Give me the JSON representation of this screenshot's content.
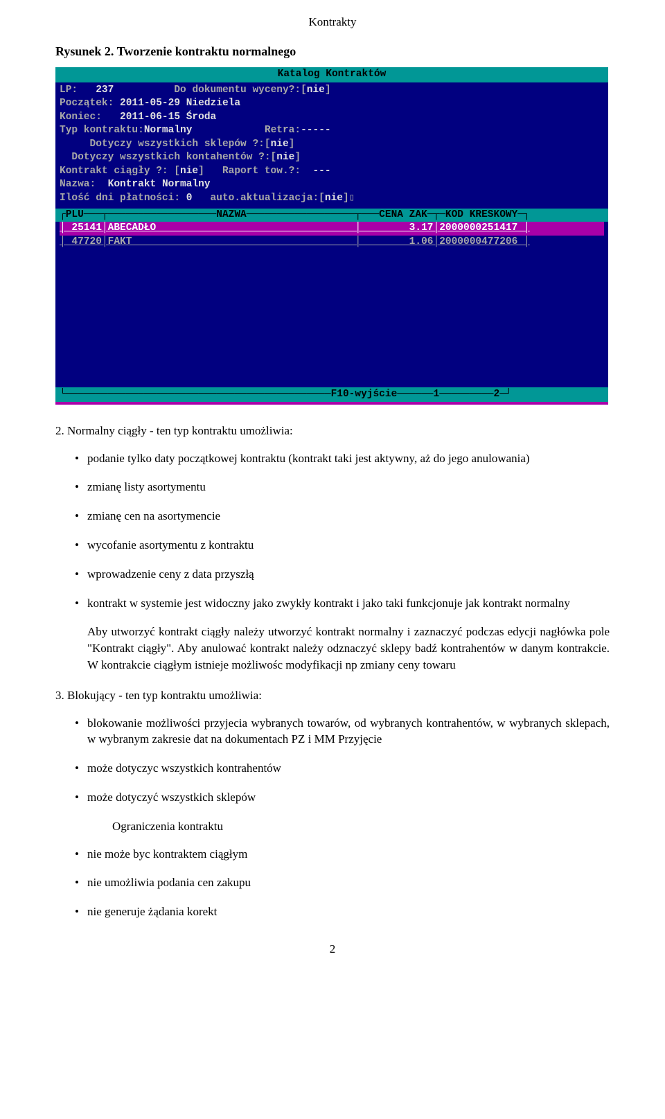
{
  "doc": {
    "header": "Kontrakty",
    "figure_caption": "Rysunek 2. Tworzenie kontraktu normalnego",
    "page_number": "2"
  },
  "terminal": {
    "background_color": "#010080",
    "accent_color": "#019796",
    "highlight_color": "#a800a8",
    "text_color": "#a8a8a8",
    "bright_color": "#e0e0e0",
    "title": "Katalog  Kontraktów",
    "lines": {
      "l1a": "LP:   ",
      "l1b": "237",
      "l1c": "          Do dokumentu wyceny?:[",
      "l1d": "nie",
      "l1e": "]",
      "l2a": "Początek: ",
      "l2b": "2011-05-29 Niedziela",
      "l3a": "Koniec:   ",
      "l3b": "2011-06-15 Środa",
      "l4a": "Typ kontraktu:",
      "l4b": "Normalny",
      "l4c": "            Retra:",
      "l4d": "-----",
      "l5a": "     Dotyczy wszystkich sklepów ?:[",
      "l5b": "nie",
      "l5c": "]",
      "l6a": "  Dotyczy wszystkich kontahentów ?:[",
      "l6b": "nie",
      "l6c": "]",
      "l7a": "Kontrakt ciągły ?: [",
      "l7b": "nie",
      "l7c": "]   Raport tow.?:  ",
      "l7d": "---",
      "l8a": "Nazwa:  ",
      "l8b": "Kontrakt Normalny",
      "l9a": "Ilość dni płatności: ",
      "l9b": "0",
      "l9c": "   auto.aktualizacja:[",
      "l9d": "nie",
      "l9e": "]▯"
    },
    "table_header": "┌PLU───┬──────────────────NAZWA──────────────────┬───CENA ZAK─┬─KOD KRESKOWY─┐",
    "rows": [
      "│ 25141│ABECADŁO                                 │        3.17│2000000251417 │",
      "│ 47720│FAKT                                     │        1.06│2000000477206 │"
    ],
    "footer": "└────────────────────────────────────────────F10-wyjście──────1─────────2─┘"
  },
  "list2": {
    "lead": "2. Normalny ciągły - ten typ kontraktu umożliwia:",
    "bullets": [
      "podanie tylko daty początkowej kontraktu (kontrakt taki jest aktywny, aż do jego anulowania)",
      "zmianę listy asortymentu",
      "zmianę cen na asortymencie",
      "wycofanie asortymentu z kontraktu",
      "wprowadzenie ceny z data przyszłą",
      "kontrakt w systemie jest widoczny jako zwykły kontrakt i  jako taki funkcjonuje jak kontrakt normalny"
    ],
    "para": "Aby utworzyć kontrakt ciągły należy utworzyć kontrakt normalny i zaznaczyć podczas edycji nagłówka pole \"Kontrakt ciągły\". Aby anulować kontrakt należy odznaczyć sklepy badź kontrahentów w danym kontrakcie. W kontrakcie ciągłym istnieje możliwośc modyfikacji np zmiany ceny towaru"
  },
  "list3": {
    "lead": "3. Blokujący - ten typ kontraktu umożliwia:",
    "bullets": [
      "blokowanie możliwości przyjecia wybranych towarów, od wybranych kontrahentów, w wybranych sklepach, w wybranym zakresie dat na dokumentach PZ i MM Przyjęcie",
      "może dotyczyc wszystkich kontrahentów",
      "może dotyczyć wszystkich sklepów"
    ],
    "sub_para": "Ograniczenia kontraktu",
    "bullets2": [
      "nie może byc kontraktem ciągłym",
      "nie umożliwia podania cen zakupu",
      "nie generuje żądania korekt"
    ]
  }
}
